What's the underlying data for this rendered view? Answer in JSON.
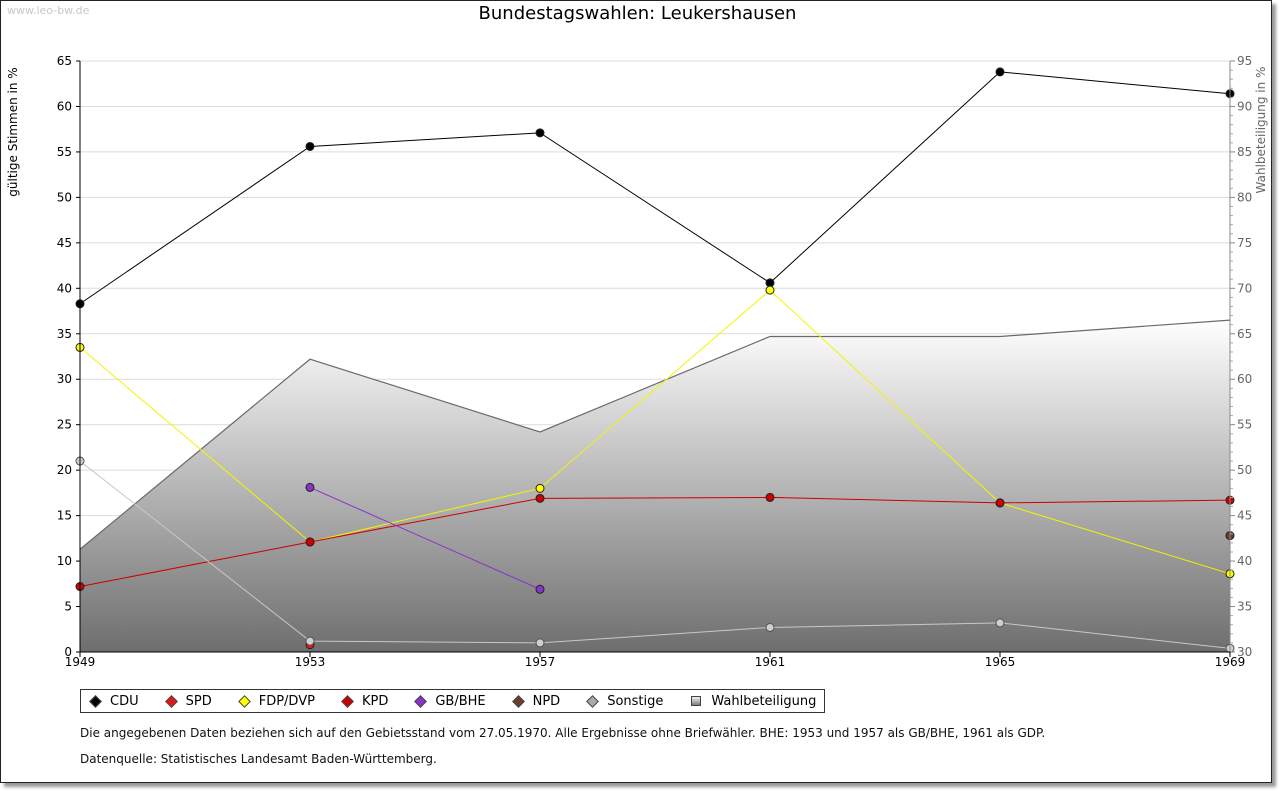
{
  "watermark": "www.leo-bw.de",
  "legend_items": [
    {
      "label": "CDU",
      "color": "#000000"
    },
    {
      "label": "SPD",
      "color": "#e11818"
    },
    {
      "label": "FDP/DVP",
      "color": "#ffff00"
    },
    {
      "label": "KPD",
      "color": "#cc0000"
    },
    {
      "label": "GB/BHE",
      "color": "#8833cc"
    },
    {
      "label": "NPD",
      "color": "#6b3d2a"
    },
    {
      "label": "Sonstige",
      "color": "#aaaaaa"
    },
    {
      "label": "Wahlbeteiligung",
      "color": "#999999"
    }
  ],
  "notes": {
    "line1": "Die angegebenen Daten beziehen sich auf den Gebietsstand vom 27.05.1970. Alle Ergebnisse ohne Briefwähler. BHE: 1953 und 1957 als GB/BHE, 1961 als GDP.",
    "line2": "Datenquelle: Statistisches Landesamt Baden-Württemberg."
  },
  "chart_data": {
    "type": "line",
    "title": "Bundestagswahlen: Leukershausen",
    "xlabel": "",
    "ylabel": "gültige Stimmen in %",
    "y2label": "Wahlbeteiligung in %",
    "categories": [
      "1949",
      "1953",
      "1957",
      "1961",
      "1965",
      "1969"
    ],
    "ylim": [
      0,
      65
    ],
    "y2lim": [
      30,
      95
    ],
    "yticks": [
      0,
      5,
      10,
      15,
      20,
      25,
      30,
      35,
      40,
      45,
      50,
      55,
      60,
      65
    ],
    "y2ticks": [
      30,
      35,
      40,
      45,
      50,
      55,
      60,
      65,
      70,
      75,
      80,
      85,
      90,
      95
    ],
    "series": [
      {
        "name": "CDU",
        "color": "#000000",
        "values": [
          38.3,
          55.6,
          57.1,
          40.6,
          63.8,
          61.4
        ]
      },
      {
        "name": "SPD",
        "color": "#e11818",
        "values": [
          null,
          0.8,
          null,
          null,
          null,
          null
        ]
      },
      {
        "name": "FDP/DVP",
        "color": "#ffff00",
        "values": [
          33.5,
          12.1,
          18.0,
          39.8,
          16.4,
          8.6
        ]
      },
      {
        "name": "KPD",
        "color": "#cc0000",
        "values": [
          7.2,
          12.1,
          16.9,
          17.0,
          16.4,
          16.7
        ]
      },
      {
        "name": "GB/BHE",
        "color": "#8833cc",
        "values": [
          null,
          18.1,
          6.9,
          null,
          null,
          null
        ]
      },
      {
        "name": "NPD",
        "color": "#6b3d2a",
        "values": [
          null,
          null,
          null,
          null,
          null,
          12.8
        ]
      },
      {
        "name": "Sonstige",
        "color": "#aaaaaa",
        "values": [
          21.0,
          1.2,
          1.0,
          2.7,
          3.2,
          0.4
        ]
      }
    ],
    "area_series": {
      "name": "Wahlbeteiligung",
      "axis": "right",
      "values": [
        41.3,
        62.2,
        54.2,
        64.7,
        64.7,
        66.5
      ]
    }
  }
}
